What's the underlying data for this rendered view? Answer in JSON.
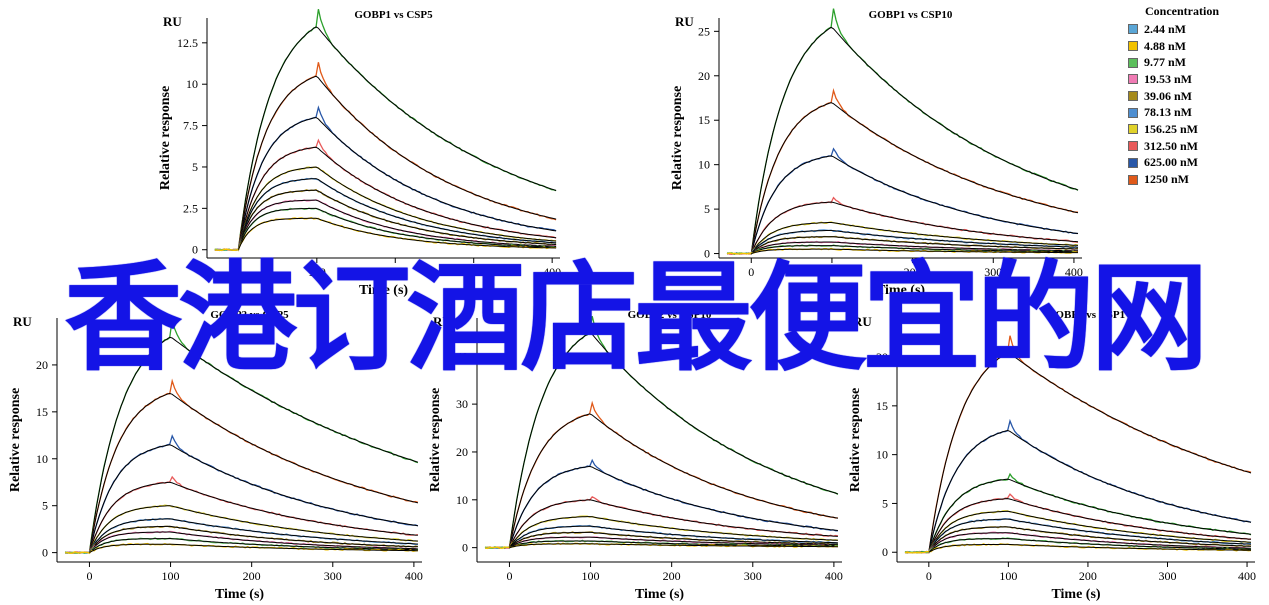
{
  "legend": {
    "title": "Concentration",
    "items": [
      {
        "label": "2.44 nM",
        "color": "#5aa6d6"
      },
      {
        "label": "4.88 nM",
        "color": "#f2c200"
      },
      {
        "label": "9.77 nM",
        "color": "#5cbf5c"
      },
      {
        "label": "19.53 nM",
        "color": "#f07bb4"
      },
      {
        "label": "39.06 nM",
        "color": "#a58a1c"
      },
      {
        "label": "78.13 nM",
        "color": "#4f8fd1"
      },
      {
        "label": "156.25 nM",
        "color": "#e0d22a"
      },
      {
        "label": "312.50 nM",
        "color": "#e85a5a"
      },
      {
        "label": "625.00 nM",
        "color": "#2857a8"
      },
      {
        "label": "1250 nM",
        "color": "#e05a1a"
      }
    ]
  },
  "banner": {
    "text": "香港订酒店最便宜的网"
  },
  "chart_data": [
    {
      "type": "line",
      "title": "GOBP1 vs CSP5",
      "unit_label": "RU",
      "ylabel": "Relative response",
      "xlabel": "Time (s)",
      "xlim": [
        -40,
        410
      ],
      "ylim": [
        -0.5,
        14
      ],
      "yticks": [
        0,
        2.5,
        5,
        7.5,
        10,
        12.5
      ],
      "ytick_labels": [
        "0",
        "2.5",
        "5",
        "7.5",
        "10",
        "12.5"
      ],
      "xticks": [
        0,
        100,
        200,
        300,
        400
      ],
      "xtick_labels": [
        "0",
        "100",
        "200",
        "300",
        "400"
      ],
      "assoc_end": 100,
      "plateaus": [
        13.5,
        10.5,
        8,
        6.2,
        5,
        4.3,
        3.6,
        3.0,
        2.5,
        1.9
      ],
      "residuals": [
        3.5,
        1.8,
        1.1,
        0.7,
        0.5,
        0.4,
        0.3,
        0.2,
        0.15,
        0.1
      ],
      "colors": [
        "#2ca02c",
        "#e05a1a",
        "#2857a8",
        "#e85a5a",
        "#e0d22a",
        "#4f8fd1",
        "#a58a1c",
        "#f07bb4",
        "#5cbf5c",
        "#f2c200"
      ]
    },
    {
      "type": "line",
      "title": "GOBP1 vs CSP10",
      "unit_label": "RU",
      "ylabel": "Relative response",
      "xlabel": "Time (s)",
      "xlim": [
        -40,
        410
      ],
      "ylim": [
        -0.5,
        26.5
      ],
      "yticks": [
        0,
        5,
        10,
        15,
        20,
        25
      ],
      "ytick_labels": [
        "0",
        "5",
        "10",
        "15",
        "20",
        "25"
      ],
      "xticks": [
        0,
        100,
        200,
        300,
        400
      ],
      "xtick_labels": [
        "0",
        "100",
        "200",
        "300",
        "400"
      ],
      "assoc_end": 100,
      "plateaus": [
        25.5,
        17,
        11,
        5.8,
        3.5,
        2.6,
        1.9,
        1.3,
        0.9,
        0.5
      ],
      "residuals": [
        7,
        4.5,
        2.2,
        1.3,
        0.9,
        0.7,
        0.5,
        0.3,
        0.2,
        0.1
      ],
      "colors": [
        "#2ca02c",
        "#e05a1a",
        "#2857a8",
        "#e85a5a",
        "#e0d22a",
        "#4f8fd1",
        "#a58a1c",
        "#f07bb4",
        "#5cbf5c",
        "#f2c200"
      ]
    },
    {
      "type": "line",
      "title": "GOBP2 vs CSP5",
      "unit_label": "RU",
      "ylabel": "Relative response",
      "xlabel": "Time (s)",
      "xlim": [
        -40,
        410
      ],
      "ylim": [
        -1,
        25
      ],
      "yticks": [
        0,
        5,
        10,
        15,
        20
      ],
      "ytick_labels": [
        "0",
        "5",
        "10",
        "15",
        "20"
      ],
      "xticks": [
        0,
        100,
        200,
        300,
        400
      ],
      "xtick_labels": [
        "0",
        "100",
        "200",
        "300",
        "400"
      ],
      "assoc_end": 100,
      "plateaus": [
        23,
        17,
        11.5,
        7.5,
        5,
        3.6,
        2.8,
        2.2,
        1.5,
        0.9
      ],
      "residuals": [
        9.5,
        5.2,
        2.8,
        1.8,
        1.2,
        0.9,
        0.6,
        0.4,
        0.3,
        0.2
      ],
      "colors": [
        "#2ca02c",
        "#e05a1a",
        "#2857a8",
        "#e85a5a",
        "#e0d22a",
        "#4f8fd1",
        "#a58a1c",
        "#f07bb4",
        "#5cbf5c",
        "#f2c200"
      ]
    },
    {
      "type": "line",
      "title": "GOBP2 vs CSP10",
      "unit_label": "RU",
      "ylabel": "Relative response",
      "xlabel": "Time (s)",
      "xlim": [
        -40,
        410
      ],
      "ylim": [
        -3,
        48
      ],
      "yticks": [
        0,
        10,
        20,
        30,
        40
      ],
      "ytick_labels": [
        "0",
        "10",
        "20",
        "30",
        "40"
      ],
      "xticks": [
        0,
        100,
        200,
        300,
        400
      ],
      "xtick_labels": [
        "0",
        "100",
        "200",
        "300",
        "400"
      ],
      "assoc_end": 100,
      "plateaus": [
        45,
        28,
        17,
        10,
        6.5,
        4.5,
        3.2,
        2.2,
        1.4,
        0.8
      ],
      "residuals": [
        11,
        6,
        3.5,
        2.3,
        1.5,
        1.0,
        0.7,
        0.5,
        0.3,
        0.2
      ],
      "colors": [
        "#2ca02c",
        "#e05a1a",
        "#2857a8",
        "#e85a5a",
        "#e0d22a",
        "#4f8fd1",
        "#a58a1c",
        "#f07bb4",
        "#5cbf5c",
        "#f2c200"
      ]
    },
    {
      "type": "line",
      "title": "GOBP2 vs CSP1",
      "unit_label": "RU",
      "ylabel": "Relative response",
      "xlabel": "Time (s)",
      "xlim": [
        -40,
        410
      ],
      "ylim": [
        -1,
        24
      ],
      "yticks": [
        0,
        5,
        10,
        15,
        20
      ],
      "ytick_labels": [
        "0",
        "5",
        "10",
        "15",
        "20"
      ],
      "xticks": [
        0,
        100,
        200,
        300,
        400
      ],
      "xtick_labels": [
        "0",
        "100",
        "200",
        "300",
        "400"
      ],
      "assoc_end": 100,
      "plateaus": [
        20.5,
        12.5,
        7.5,
        5.5,
        4.2,
        3.4,
        2.6,
        2.0,
        1.4,
        0.8
      ],
      "residuals": [
        8,
        3,
        1.8,
        1.3,
        1.0,
        0.8,
        0.6,
        0.4,
        0.3,
        0.2
      ],
      "colors": [
        "#e05a1a",
        "#2857a8",
        "#2ca02c",
        "#e85a5a",
        "#e0d22a",
        "#4f8fd1",
        "#a58a1c",
        "#f07bb4",
        "#5cbf5c",
        "#f2c200"
      ]
    }
  ]
}
